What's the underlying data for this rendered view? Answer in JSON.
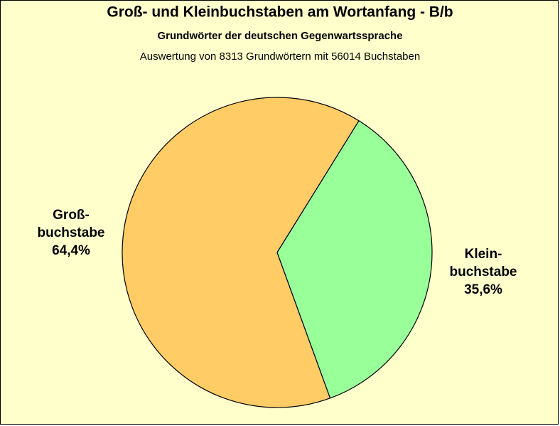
{
  "chart_data": {
    "type": "pie",
    "title": "Groß- und  Kleinbuchstaben am Wortanfang - B/b",
    "subtitle": "Grundwörter der deutschen Gegenwartssprache",
    "caption": "Auswertung von 8313 Grundwörtern mit 56014 Buchstaben",
    "categories": [
      [
        "Groß-",
        "buchstabe"
      ],
      [
        "Klein-",
        "buchstabe"
      ]
    ],
    "values": [
      64.4,
      35.6
    ],
    "value_labels": [
      "64,4%",
      "35,6%"
    ],
    "colors": [
      "#ffcc66",
      "#99ff99"
    ]
  }
}
